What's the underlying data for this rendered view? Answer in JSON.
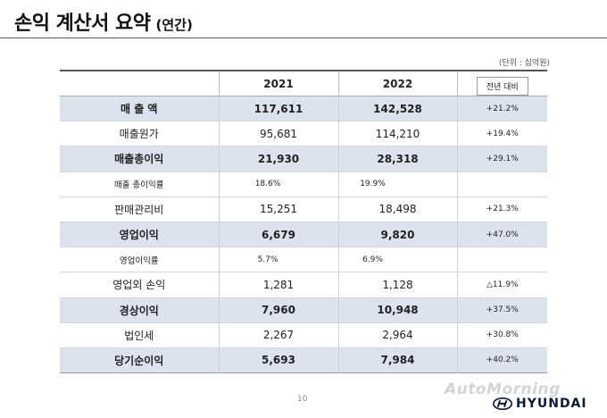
{
  "header": {
    "title": "손익 계산서 요약",
    "subtitle": "(연간)"
  },
  "unit_note": "(단위 : 십억원)",
  "table": {
    "columns": [
      "",
      "2021",
      "2022",
      "전년 대비"
    ],
    "rows": [
      {
        "label": "매 출 액",
        "y2021": "117,611",
        "y2022": "142,528",
        "yoy": "+21.2%",
        "style": "hl"
      },
      {
        "label": "매출원가",
        "y2021": "95,681",
        "y2022": "114,210",
        "yoy": "+19.4%",
        "style": "plain"
      },
      {
        "label": "매출총이익",
        "y2021": "21,930",
        "y2022": "28,318",
        "yoy": "+29.1%",
        "style": "hl"
      },
      {
        "label": "매출 총이익률",
        "y2021": "18.6%",
        "y2022": "19.9%",
        "yoy": "",
        "style": "sub"
      },
      {
        "label": "판매관리비",
        "y2021": "15,251",
        "y2022": "18,498",
        "yoy": "+21.3%",
        "style": "plain"
      },
      {
        "label": "영업이익",
        "y2021": "6,679",
        "y2022": "9,820",
        "yoy": "+47.0%",
        "style": "hl"
      },
      {
        "label": "영업이익률",
        "y2021": "5.7%",
        "y2022": "6.9%",
        "yoy": "",
        "style": "sub"
      },
      {
        "label": "영업외 손익",
        "y2021": "1,281",
        "y2022": "1,128",
        "yoy": "△11.9%",
        "style": "plain"
      },
      {
        "label": "경상이익",
        "y2021": "7,960",
        "y2022": "10,948",
        "yoy": "+37.5%",
        "style": "hl"
      },
      {
        "label": "법인세",
        "y2021": "2,267",
        "y2022": "2,964",
        "yoy": "+30.8%",
        "style": "plain"
      },
      {
        "label": "당기순이익",
        "y2021": "5,693",
        "y2022": "7,984",
        "yoy": "+40.2%",
        "style": "hl"
      }
    ]
  },
  "footer": {
    "page_number": "10",
    "watermark": "AutoMorning",
    "brand": "HYUNDAI",
    "brand_icon": "hyundai-logo-icon"
  },
  "colors": {
    "highlight_row": "#dce3ef",
    "brand": "#0b1a3a"
  }
}
